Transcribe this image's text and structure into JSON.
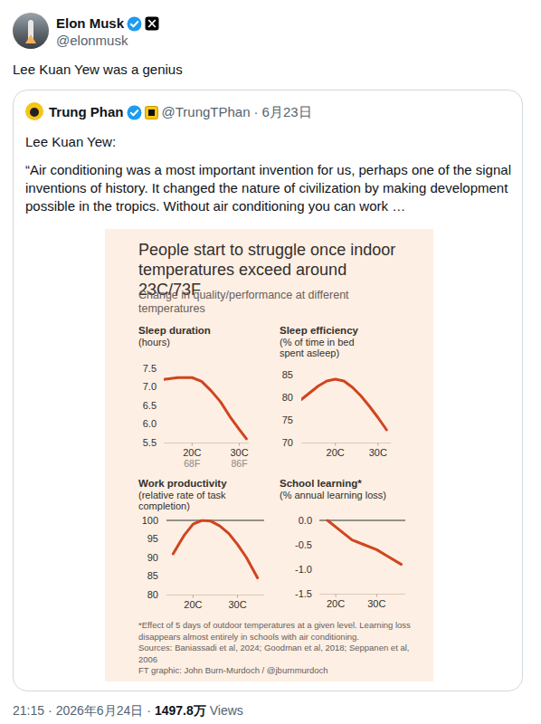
{
  "tweet": {
    "author": "Elon Musk",
    "handle": "@elonmusk",
    "text": "Lee Kuan Yew was a genius",
    "time": "21:15",
    "date": "2026年6月24日",
    "views": "1497.8万",
    "views_label": "Views",
    "separator": "·",
    "quoted": {
      "author": "Trung Phan",
      "handle": "@TrungTPhan",
      "date": "6月23日",
      "lines": [
        "Lee Kuan Yew:",
        "“Air conditioning was a most important invention for us, perhaps one of the signal inventions of history. It changed the nature of civilization by making development possible in the tropics. Without air conditioning you can work …"
      ]
    }
  },
  "figure": {
    "title": "People start to struggle once indoor temperatures exceed around 23C/73F",
    "subtitle": "Change in quality/performance at different temperatures",
    "notes": [
      "*Effect of 5 days of outdoor temperatures at a given level. Learning loss disappears almost entirely in schools with air conditioning.",
      "Sources: Baniassadi et al, 2024; Goodman et al, 2018; Seppanen et al, 2006",
      "FT graphic: John Burn-Murdoch / @jburnmurdoch"
    ]
  },
  "chart_data": [
    {
      "type": "line",
      "title": "Sleep duration",
      "subtitle": "(hours)",
      "x": [
        14,
        17,
        20,
        22,
        24,
        26,
        28,
        30,
        31.5
      ],
      "values": [
        7.2,
        7.25,
        7.25,
        7.15,
        6.9,
        6.6,
        6.2,
        5.85,
        5.6
      ],
      "color": "#d0451f",
      "xlim": [
        14,
        32
      ],
      "xticks": [
        {
          "value": 20,
          "label": "20C",
          "label2": "68F"
        },
        {
          "value": 30,
          "label": "30C",
          "label2": "86F"
        }
      ],
      "ylim": [
        5.5,
        7.5
      ],
      "yticks": [
        7.5,
        {
          "value": 7,
          "label": "7.0"
        },
        6.5,
        {
          "value": 6,
          "label": "6.0"
        },
        5.5
      ],
      "grid": false
    },
    {
      "type": "line",
      "title": "Sleep efficiency",
      "subtitle": "(% of time in bed spent asleep)",
      "x": [
        12,
        14,
        16,
        18,
        20,
        22,
        24,
        26,
        28,
        30,
        32
      ],
      "values": [
        79.5,
        81,
        82.5,
        83.6,
        84,
        83.6,
        82.2,
        80.3,
        78,
        75.5,
        72.8
      ],
      "color": "#d0451f",
      "xlim": [
        12,
        33
      ],
      "xticks": [
        {
          "value": 20,
          "label": "20C"
        },
        {
          "value": 30,
          "label": "30C"
        }
      ],
      "ylim": [
        70,
        85
      ],
      "yticks": [
        85,
        80,
        75,
        70
      ],
      "grid": false
    },
    {
      "type": "line",
      "title": "Work productivity",
      "subtitle": "(relative rate of task completion)",
      "x": [
        15.5,
        17,
        18,
        20,
        22,
        24,
        26,
        28,
        30,
        32,
        34.5
      ],
      "values": [
        91,
        94,
        96,
        99,
        100,
        99.8,
        98.5,
        96.5,
        93.5,
        90,
        84.5
      ],
      "color": "#d0451f",
      "xlim": [
        14,
        36
      ],
      "xticks": [
        {
          "value": 20,
          "label": "20C"
        },
        {
          "value": 30,
          "label": "30C"
        }
      ],
      "ylim": [
        80,
        100
      ],
      "yticks": [
        100,
        95,
        90,
        85,
        80
      ],
      "reference_line": 100,
      "grid": false
    },
    {
      "type": "line",
      "title": "School learning*",
      "subtitle": "(% annual learning loss)",
      "x": [
        18,
        21,
        24,
        27,
        30,
        33,
        36
      ],
      "values": [
        0,
        -0.2,
        -0.4,
        -0.5,
        -0.6,
        -0.75,
        -0.9
      ],
      "color": "#d0451f",
      "xlim": [
        16,
        37
      ],
      "xticks": [
        {
          "value": 20,
          "label": "20C"
        },
        {
          "value": 30,
          "label": "30C"
        }
      ],
      "ylim": [
        -1.5,
        0
      ],
      "yticks": [
        {
          "value": 0,
          "label": "0.0"
        },
        -0.5,
        {
          "value": -1,
          "label": "-1.0"
        },
        -1.5
      ],
      "reference_line": 0,
      "grid": false
    }
  ]
}
